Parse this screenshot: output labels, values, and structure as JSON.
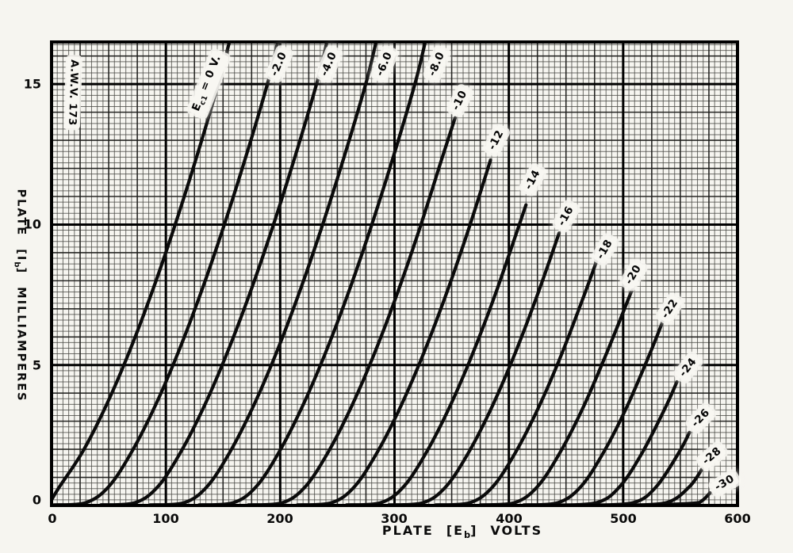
{
  "figure": {
    "id_tag": "A.W.V. 173"
  },
  "chart_data": {
    "type": "line",
    "description": "Triode average plate characteristics: plate current vs plate voltage for grid bias Ec1 = 0 to -30 volts in 2-volt steps",
    "xlabel": {
      "p1": "PLATE",
      "p2": "[E",
      "sub": "b",
      "p3": "]",
      "p4": "VOLTS"
    },
    "ylabel": {
      "p1": "PLATE",
      "p2": "[I",
      "sub": "b",
      "p3": "]",
      "p4": "MILLIAMPERES"
    },
    "xlim": [
      0,
      600
    ],
    "ylim": [
      0,
      16.5
    ],
    "x_ticks": [
      0,
      100,
      200,
      300,
      400,
      500,
      600
    ],
    "y_ticks": [
      0,
      5,
      10,
      15
    ],
    "grid": {
      "on": true,
      "minor_x_volts": 5,
      "minor_y_ma": 0.2,
      "medium_x_volts": 25,
      "medium_y_ma": 1,
      "major_x_volts": 100,
      "major_y_ma": 5
    },
    "legend_position": "labels-on-curves",
    "ink_color": "#0b0b0b",
    "paper_color": "#f6f5f0",
    "series": [
      {
        "name": "Ec1 = 0 V.",
        "grid_bias_volts": 0,
        "label": {
          "p1": "E",
          "sub": "c1",
          "p2": " = 0 V.",
          "x": 137,
          "y": 15.0,
          "angle": -68
        },
        "points": [
          [
            0,
            0.2
          ],
          [
            7,
            0.67
          ],
          [
            27,
            1.9
          ],
          [
            47,
            3.49
          ],
          [
            67,
            5.37
          ],
          [
            87,
            7.5
          ],
          [
            107,
            9.86
          ],
          [
            127,
            12.42
          ],
          [
            147,
            15.18
          ],
          [
            158,
            16.9
          ]
        ]
      },
      {
        "name": "-2.0",
        "grid_bias_volts": -2,
        "label": {
          "text": "-2.0",
          "x": 199,
          "y": 15.7,
          "angle": -67
        },
        "points": [
          [
            2,
            0.02
          ],
          [
            30,
            0.1
          ],
          [
            50,
            0.67
          ],
          [
            70,
            1.9
          ],
          [
            90,
            3.49
          ],
          [
            110,
            5.37
          ],
          [
            130,
            7.5
          ],
          [
            150,
            9.86
          ],
          [
            170,
            12.42
          ],
          [
            190,
            15.18
          ],
          [
            200,
            16.9
          ]
        ]
      },
      {
        "name": "-4.0",
        "grid_bias_volts": -4,
        "label": {
          "text": "-4.0",
          "x": 243,
          "y": 15.7,
          "angle": -67
        },
        "points": [
          [
            43,
            0.02
          ],
          [
            73,
            0.1
          ],
          [
            93,
            0.67
          ],
          [
            113,
            1.9
          ],
          [
            133,
            3.49
          ],
          [
            153,
            5.37
          ],
          [
            173,
            7.5
          ],
          [
            193,
            9.86
          ],
          [
            213,
            12.42
          ],
          [
            233,
            15.18
          ],
          [
            243,
            16.9
          ]
        ]
      },
      {
        "name": "-6.0",
        "grid_bias_volts": -6,
        "label": {
          "text": "-6.0",
          "x": 291,
          "y": 15.7,
          "angle": -67
        },
        "points": [
          [
            86,
            0.02
          ],
          [
            116,
            0.1
          ],
          [
            136,
            0.67
          ],
          [
            156,
            1.9
          ],
          [
            176,
            3.49
          ],
          [
            196,
            5.37
          ],
          [
            216,
            7.5
          ],
          [
            236,
            9.86
          ],
          [
            256,
            12.42
          ],
          [
            276,
            15.18
          ],
          [
            286,
            16.9
          ]
        ]
      },
      {
        "name": "-8.0",
        "grid_bias_volts": -8,
        "label": {
          "text": "-8.0",
          "x": 337,
          "y": 15.7,
          "angle": -67
        },
        "points": [
          [
            129,
            0.02
          ],
          [
            159,
            0.1
          ],
          [
            179,
            0.67
          ],
          [
            199,
            1.9
          ],
          [
            219,
            3.49
          ],
          [
            239,
            5.37
          ],
          [
            259,
            7.5
          ],
          [
            279,
            9.86
          ],
          [
            299,
            12.42
          ],
          [
            319,
            15.18
          ],
          [
            329,
            16.9
          ]
        ]
      },
      {
        "name": "-10",
        "grid_bias_volts": -10,
        "label": {
          "text": "-10",
          "x": 357,
          "y": 14.4,
          "angle": -64
        },
        "points": [
          [
            172,
            0.02
          ],
          [
            202,
            0.1
          ],
          [
            222,
            0.67
          ],
          [
            242,
            1.9
          ],
          [
            262,
            3.49
          ],
          [
            282,
            5.37
          ],
          [
            302,
            7.5
          ],
          [
            322,
            9.86
          ],
          [
            342,
            12.42
          ],
          [
            353,
            13.8
          ]
        ]
      },
      {
        "name": "-12",
        "grid_bias_volts": -12,
        "label": {
          "text": "-12",
          "x": 389,
          "y": 13.0,
          "angle": -63
        },
        "points": [
          [
            215,
            0.02
          ],
          [
            245,
            0.1
          ],
          [
            265,
            0.67
          ],
          [
            285,
            1.9
          ],
          [
            305,
            3.49
          ],
          [
            325,
            5.37
          ],
          [
            345,
            7.5
          ],
          [
            365,
            9.86
          ],
          [
            384,
            12.3
          ]
        ]
      },
      {
        "name": "-14",
        "grid_bias_volts": -14,
        "label": {
          "text": "-14",
          "x": 421,
          "y": 11.6,
          "angle": -62
        },
        "points": [
          [
            258,
            0.02
          ],
          [
            288,
            0.1
          ],
          [
            308,
            0.67
          ],
          [
            328,
            1.9
          ],
          [
            348,
            3.49
          ],
          [
            368,
            5.37
          ],
          [
            388,
            7.5
          ],
          [
            408,
            9.86
          ],
          [
            415,
            10.7
          ]
        ]
      },
      {
        "name": "-16",
        "grid_bias_volts": -16,
        "label": {
          "text": "-16",
          "x": 450,
          "y": 10.3,
          "angle": -61
        },
        "points": [
          [
            295,
            0.02
          ],
          [
            325,
            0.1
          ],
          [
            345,
            0.67
          ],
          [
            365,
            1.9
          ],
          [
            385,
            3.49
          ],
          [
            405,
            5.37
          ],
          [
            425,
            7.5
          ],
          [
            444,
            9.7
          ]
        ]
      },
      {
        "name": "-18",
        "grid_bias_volts": -18,
        "label": {
          "text": "-18",
          "x": 484,
          "y": 9.1,
          "angle": -60
        },
        "points": [
          [
            336,
            0.02
          ],
          [
            366,
            0.1
          ],
          [
            386,
            0.67
          ],
          [
            406,
            1.9
          ],
          [
            426,
            3.49
          ],
          [
            446,
            5.37
          ],
          [
            466,
            7.5
          ],
          [
            479,
            8.95
          ]
        ]
      },
      {
        "name": "-20",
        "grid_bias_volts": -20,
        "label": {
          "text": "-20",
          "x": 509,
          "y": 8.2,
          "angle": -59
        },
        "points": [
          [
            375,
            0.02
          ],
          [
            405,
            0.1
          ],
          [
            425,
            0.67
          ],
          [
            445,
            1.9
          ],
          [
            465,
            3.49
          ],
          [
            485,
            5.37
          ],
          [
            508,
            7.7
          ]
        ]
      },
      {
        "name": "-22",
        "grid_bias_volts": -22,
        "label": {
          "text": "-22",
          "x": 541,
          "y": 7.0,
          "angle": -57
        },
        "points": [
          [
            413,
            0.02
          ],
          [
            443,
            0.1
          ],
          [
            463,
            0.67
          ],
          [
            483,
            1.9
          ],
          [
            503,
            3.49
          ],
          [
            523,
            5.37
          ],
          [
            537,
            6.8
          ]
        ]
      },
      {
        "name": "-24",
        "grid_bias_volts": -24,
        "label": {
          "text": "-24",
          "x": 557,
          "y": 4.9,
          "angle": -52
        },
        "points": [
          [
            440,
            0.01
          ],
          [
            477,
            0.1
          ],
          [
            497,
            0.67
          ],
          [
            517,
            1.9
          ],
          [
            537,
            3.49
          ],
          [
            547,
            4.4
          ]
        ]
      },
      {
        "name": "-26",
        "grid_bias_volts": -26,
        "label": {
          "text": "-26",
          "x": 568,
          "y": 3.1,
          "angle": -46
        },
        "points": [
          [
            470,
            0.01
          ],
          [
            509,
            0.1
          ],
          [
            529,
            0.67
          ],
          [
            549,
            1.9
          ],
          [
            558,
            2.6
          ]
        ]
      },
      {
        "name": "-28",
        "grid_bias_volts": -28,
        "label": {
          "text": "-28",
          "x": 578,
          "y": 1.75,
          "angle": -40
        },
        "points": [
          [
            500,
            0.01
          ],
          [
            538,
            0.1
          ],
          [
            558,
            0.67
          ],
          [
            569,
            1.3
          ]
        ]
      },
      {
        "name": "-30",
        "grid_bias_volts": -30,
        "label": {
          "text": "-30",
          "x": 589,
          "y": 0.8,
          "angle": -30
        },
        "points": [
          [
            520,
            0.01
          ],
          [
            561,
            0.08
          ],
          [
            569,
            0.17
          ],
          [
            576,
            0.45
          ]
        ]
      }
    ]
  }
}
